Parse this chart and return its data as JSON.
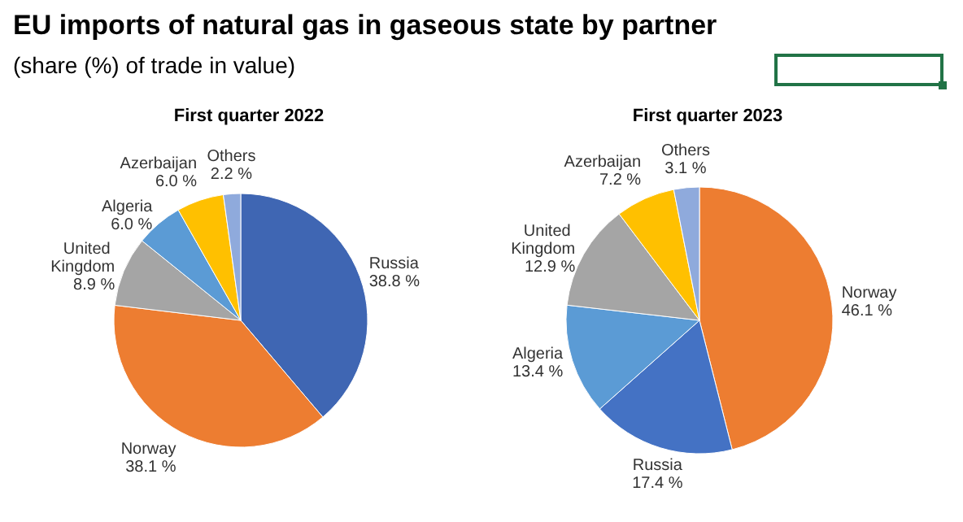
{
  "chart_data": [
    {
      "type": "other",
      "title": "EU imports of natural gas in gaseous state by partner",
      "subtitle": "(share (%) of trade in value)"
    },
    {
      "type": "pie",
      "title": "First quarter 2022",
      "categories": [
        "Russia",
        "Norway",
        "United Kingdom",
        "Algeria",
        "Azerbaijan",
        "Others"
      ],
      "values": [
        38.8,
        38.1,
        8.9,
        6.0,
        6.0,
        2.2
      ],
      "value_labels": [
        "38.8 %",
        "38.1 %",
        "8.9 %",
        "6.0 %",
        "6.0 %",
        "2.2 %"
      ],
      "colors": [
        "#3f66b3",
        "#ed7d31",
        "#a5a5a5",
        "#5b9bd5",
        "#ffc000",
        "#8faadc"
      ]
    },
    {
      "type": "pie",
      "title": "First quarter 2023",
      "categories": [
        "Norway",
        "Russia",
        "Algeria",
        "United Kingdom",
        "Azerbaijan",
        "Others"
      ],
      "values": [
        46.1,
        17.4,
        13.4,
        12.9,
        7.2,
        3.1
      ],
      "value_labels": [
        "46.1 %",
        "17.4 %",
        "13.4 %",
        "12.9 %",
        "7.2 %",
        "3.1 %"
      ],
      "colors": [
        "#ed7d31",
        "#4472c4",
        "#5b9bd5",
        "#a5a5a5",
        "#ffc000",
        "#8faadc"
      ]
    }
  ]
}
